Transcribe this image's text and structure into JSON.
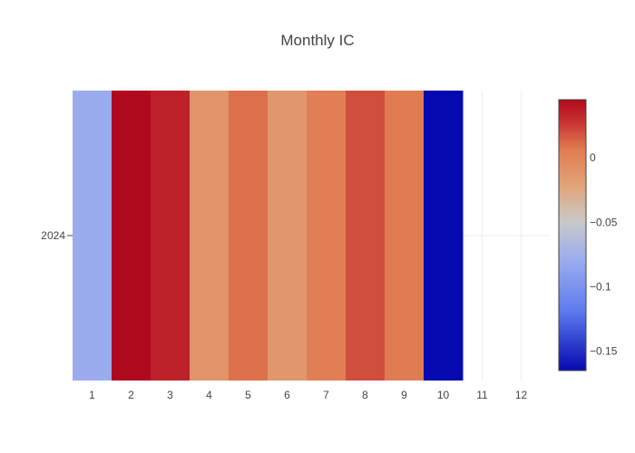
{
  "chart_data": {
    "type": "heatmap",
    "title": "Monthly IC",
    "x": [
      "1",
      "2",
      "3",
      "4",
      "5",
      "6",
      "7",
      "8",
      "9",
      "10",
      "11",
      "12"
    ],
    "y": [
      "2024"
    ],
    "z": [
      [
        -0.08,
        0.045,
        0.035,
        -0.01,
        0.01,
        -0.013,
        0.004,
        0.02,
        0.006,
        -0.165,
        null,
        null
      ]
    ],
    "zlim": [
      -0.165,
      0.045
    ],
    "colorscale": [
      [
        0.0,
        "#0609B0"
      ],
      [
        0.22,
        "#5C7CEE"
      ],
      [
        0.4,
        "#98ABEF"
      ],
      [
        0.55,
        "#C9C9C9"
      ],
      [
        0.68,
        "#E2A47A"
      ],
      [
        0.82,
        "#E07A50"
      ],
      [
        0.92,
        "#C63131"
      ],
      [
        1.0,
        "#B00A1E"
      ]
    ],
    "colorbar_ticks": [
      {
        "value": 0,
        "label": "0"
      },
      {
        "value": -0.05,
        "label": "−0.05"
      },
      {
        "value": -0.1,
        "label": "−0.1"
      },
      {
        "value": -0.15,
        "label": "−0.15"
      }
    ]
  }
}
